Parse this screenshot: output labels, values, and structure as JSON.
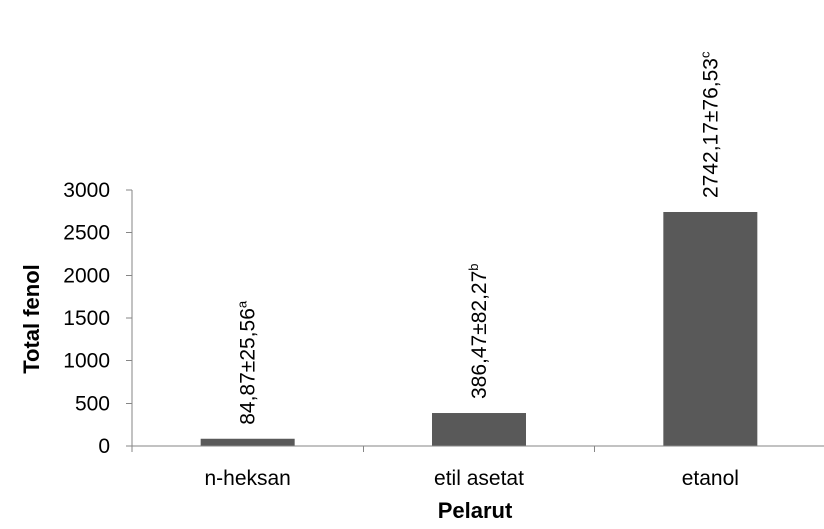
{
  "chart_data": {
    "type": "bar",
    "categories": [
      "n-heksan",
      "etil asetat",
      "etanol"
    ],
    "values": [
      84.87,
      386.47,
      2742.17
    ],
    "data_labels": [
      {
        "text": "84,87±25,56",
        "superscript": "a"
      },
      {
        "text": "386,47±82,27",
        "superscript": "b"
      },
      {
        "text": "2742,17±76,53",
        "superscript": "c"
      }
    ],
    "title": "",
    "xlabel": "Pelarut",
    "ylabel": "Total fenol",
    "ylim": [
      0,
      3000
    ],
    "yticks": [
      0,
      500,
      1000,
      1500,
      2000,
      2500,
      3000
    ],
    "ytick_labels": [
      "0",
      "500",
      "1000",
      "1500",
      "2000",
      "2500",
      "3000"
    ],
    "grid": false,
    "legend": "none",
    "bar_color": "#595959",
    "axis_color": "#868686"
  }
}
